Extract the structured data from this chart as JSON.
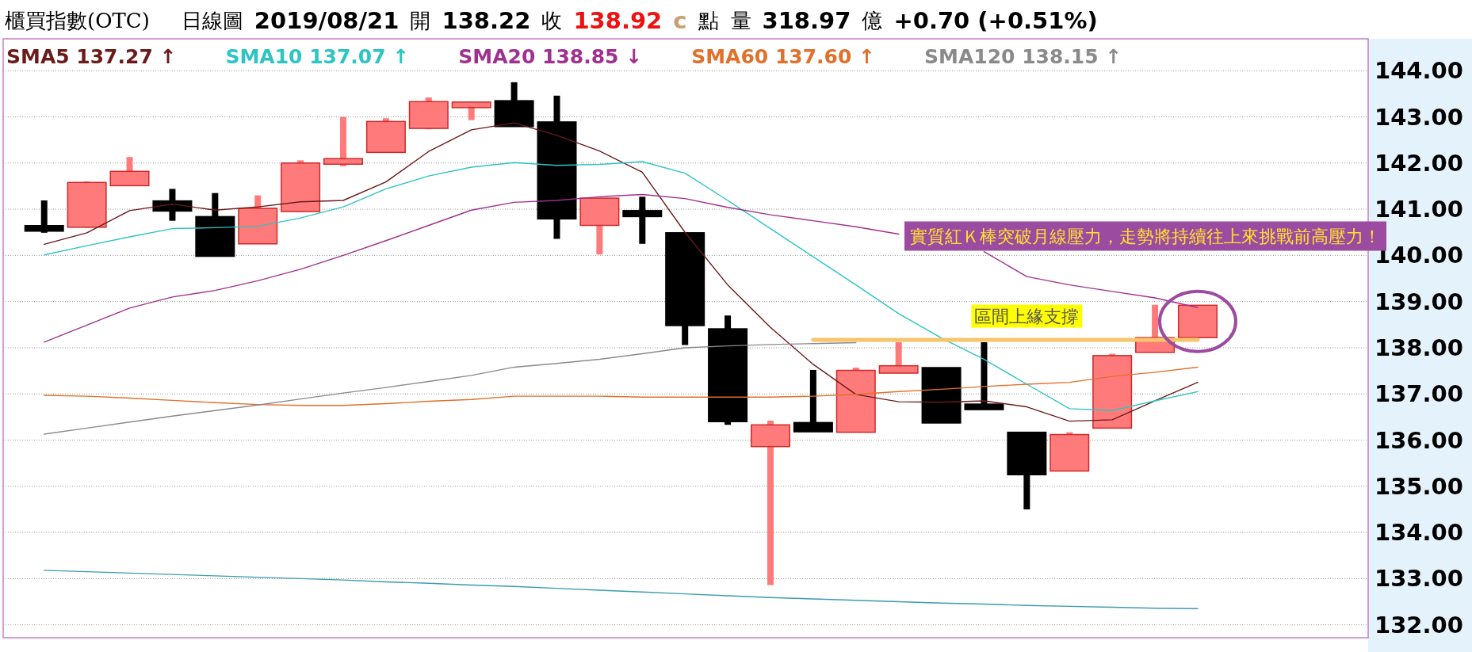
{
  "chart_data": {
    "type": "candlestick",
    "title": "櫃買指數(OTC)",
    "subtitle": "日線圖",
    "annotations": [
      "2019/08/21",
      "開",
      "138.22",
      "收",
      "138.92",
      "c",
      "點",
      "量",
      "318.97",
      "億",
      "+0.70 (+0.51%)",
      "實質紅Ｋ棒突破月線壓力，走勢將持續往上來挑戰前高壓力！"
    ],
    "categories": [
      null,
      null,
      null,
      null,
      null,
      null,
      null,
      null,
      null,
      null,
      null,
      null,
      null,
      null,
      null,
      null,
      null,
      null,
      null,
      null,
      null,
      null,
      null,
      null,
      null,
      null,
      null,
      null
    ],
    "ohlc": [
      [
        140.62,
        141.19,
        140.49,
        140.55
      ],
      [
        140.61,
        141.6,
        140.6,
        141.58
      ],
      [
        141.51,
        142.13,
        141.51,
        141.82
      ],
      [
        141.18,
        141.44,
        140.75,
        140.96
      ],
      [
        140.84,
        141.35,
        139.98,
        139.98
      ],
      [
        140.25,
        141.3,
        140.25,
        141.02
      ],
      [
        140.95,
        142.06,
        140.95,
        142.0
      ],
      [
        142.02,
        143.0,
        141.93,
        142.05
      ],
      [
        142.23,
        142.97,
        142.23,
        142.9
      ],
      [
        142.75,
        143.42,
        142.73,
        143.33
      ],
      [
        143.21,
        143.31,
        142.93,
        143.31
      ],
      [
        143.35,
        143.75,
        142.79,
        142.79
      ],
      [
        142.89,
        143.46,
        140.36,
        140.79
      ],
      [
        140.65,
        141.24,
        140.02,
        141.24
      ],
      [
        140.97,
        141.27,
        140.25,
        140.84
      ],
      [
        140.49,
        140.49,
        138.06,
        138.48
      ],
      [
        138.41,
        138.7,
        136.33,
        136.4
      ],
      [
        135.86,
        136.42,
        132.86,
        136.33
      ],
      [
        136.38,
        137.52,
        136.18,
        136.18
      ],
      [
        136.17,
        137.57,
        136.17,
        137.51
      ],
      [
        137.45,
        138.12,
        137.45,
        137.61
      ],
      [
        137.57,
        137.57,
        136.37,
        136.37
      ],
      [
        136.76,
        138.12,
        136.68,
        136.68
      ],
      [
        136.17,
        136.17,
        134.5,
        135.25
      ],
      [
        135.33,
        136.17,
        135.33,
        136.12
      ],
      [
        136.26,
        137.87,
        136.26,
        137.83
      ],
      [
        137.9,
        138.93,
        137.9,
        138.22
      ],
      [
        138.22,
        138.92,
        138.22,
        138.92
      ]
    ],
    "colors": [
      "#000000",
      "#ff7b7b",
      "#ff7b7b",
      "#000000",
      "#000000",
      "#ff7b7b",
      "#ff7b7b",
      "#ff7b7b",
      "#ff7b7b",
      "#ff7b7b",
      "#ff7b7b",
      "#000000",
      "#000000",
      "#ff7b7b",
      "#000000",
      "#000000",
      "#000000",
      "#ff7b7b",
      "#000000",
      "#ff7b7b",
      "#ff7b7b",
      "#000000",
      "#000000",
      "#000000",
      "#ff7b7b",
      "#ff7b7b",
      "#ff7b7b",
      "#ff7b7b"
    ],
    "series": [
      {
        "name": "SMA5 137.27 ↑",
        "type": "line",
        "color": "#6b1a1a",
        "values": [
          140.24,
          140.49,
          140.97,
          141.11,
          140.98,
          141.05,
          141.16,
          141.19,
          141.59,
          142.25,
          142.72,
          142.87,
          142.6,
          142.26,
          141.8,
          140.5,
          139.36,
          138.44,
          137.64,
          136.99,
          136.83,
          136.82,
          136.85,
          136.72,
          136.41,
          136.44,
          136.85,
          137.25
        ]
      },
      {
        "name": "SMA10 137.07 ↑",
        "type": "line",
        "color": "#2ec4c4",
        "values": [
          140.01,
          140.21,
          140.4,
          140.58,
          140.6,
          140.63,
          140.81,
          141.05,
          141.44,
          141.72,
          141.91,
          142.01,
          141.95,
          141.97,
          142.03,
          141.78,
          141.19,
          140.58,
          139.97,
          139.36,
          138.74,
          138.21,
          137.75,
          137.21,
          136.68,
          136.64,
          136.85,
          137.05
        ]
      },
      {
        "name": "SMA20 138.85 ↓",
        "type": "line",
        "color": "#a0308f",
        "values": [
          138.12,
          138.49,
          138.86,
          139.1,
          139.24,
          139.45,
          139.7,
          140.0,
          140.32,
          140.65,
          140.98,
          141.15,
          141.19,
          141.27,
          141.32,
          141.23,
          141.04,
          140.88,
          140.75,
          140.62,
          140.46,
          null,
          140.08,
          139.54,
          139.36,
          139.22,
          139.08,
          138.87
        ]
      },
      {
        "name": "SMA60 137.60 ↑",
        "type": "line",
        "color": "#e0702a",
        "values": [
          136.97,
          136.95,
          136.91,
          136.86,
          136.81,
          136.77,
          136.75,
          136.75,
          136.79,
          136.84,
          136.88,
          136.95,
          136.95,
          136.95,
          136.93,
          136.93,
          136.93,
          136.93,
          136.95,
          136.99,
          137.05,
          137.1,
          137.16,
          137.21,
          137.25,
          137.38,
          137.47,
          137.58
        ]
      },
      {
        "name": "SMA120 138.15 ↑",
        "type": "line",
        "color": "#8a8a8a",
        "values": [
          136.13,
          136.26,
          136.39,
          136.52,
          136.64,
          136.76,
          136.89,
          137.02,
          137.14,
          137.27,
          137.4,
          137.58,
          137.66,
          137.75,
          137.87,
          138.0,
          138.04,
          138.07,
          138.09,
          138.11,
          null,
          null,
          null,
          null,
          null,
          null,
          null,
          null
        ]
      },
      {
        "type": "line",
        "color": "#3a9bb0",
        "values": [
          133.18,
          133.15,
          133.12,
          133.09,
          133.06,
          133.03,
          133.0,
          132.97,
          132.93,
          132.9,
          132.86,
          132.83,
          132.79,
          132.75,
          132.71,
          132.67,
          132.63,
          132.59,
          132.56,
          132.53,
          132.5,
          132.47,
          132.45,
          132.42,
          132.4,
          132.38,
          132.36,
          132.35
        ]
      },
      {
        "name": "區間上緣支撐",
        "type": "line",
        "color": "#f7c56b",
        "values": [
          null,
          null,
          null,
          null,
          null,
          null,
          null,
          null,
          null,
          null,
          null,
          null,
          null,
          null,
          null,
          null,
          null,
          null,
          138.17,
          138.17,
          138.17,
          138.17,
          138.17,
          138.17,
          138.17,
          138.17,
          138.17,
          138.17
        ]
      }
    ],
    "ylim": [
      131.72,
      144.69
    ],
    "yticks": [
      {
        "value": 132,
        "label": "132.00"
      },
      {
        "value": 133,
        "label": "133.00"
      },
      {
        "value": 134,
        "label": "134.00"
      },
      {
        "value": 135,
        "label": "135.00"
      },
      {
        "value": 136,
        "label": "136.00"
      },
      {
        "value": 137,
        "label": "137.00"
      },
      {
        "value": 138,
        "label": "138.00"
      },
      {
        "value": 139,
        "label": "139.00"
      },
      {
        "value": 140,
        "label": "140.00"
      },
      {
        "value": 141,
        "label": "141.00"
      },
      {
        "value": 142,
        "label": "142.00"
      },
      {
        "value": 143,
        "label": "143.00"
      },
      {
        "value": 144,
        "label": "144.00"
      }
    ],
    "grid": "y",
    "legend": "top left"
  }
}
